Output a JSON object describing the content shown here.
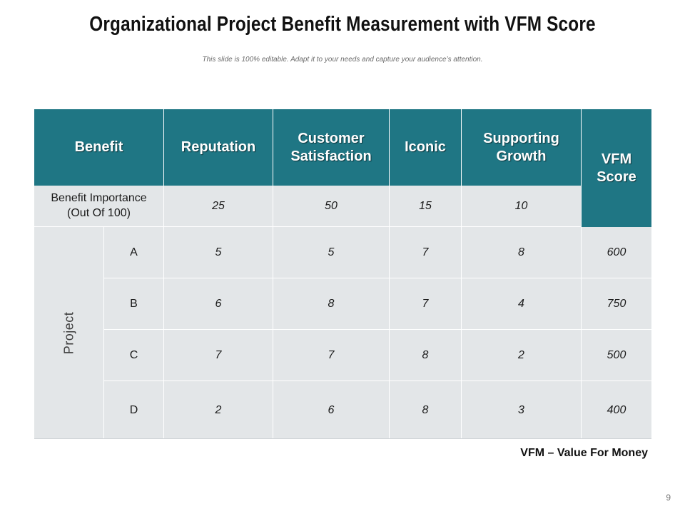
{
  "slide": {
    "title": "Organizational Project Benefit Measurement with VFM Score",
    "subtitle": "This slide is 100% editable. Adapt it to your needs and capture your audience’s attention.",
    "footnote": "VFM – Value For Money",
    "page_number": "9"
  },
  "table": {
    "headers": {
      "benefit": "Benefit",
      "reputation": "Reputation",
      "customer_satisfaction_1": "Customer",
      "customer_satisfaction_2": "Satisfaction",
      "iconic": "Iconic",
      "supporting_growth_1": "Supporting",
      "supporting_growth_2": "Growth",
      "vfm_score_1": "VFM",
      "vfm_score_2": "Score"
    },
    "importance": {
      "label_1": "Benefit Importance",
      "label_2": "(Out Of 100)",
      "values": [
        "25",
        "50",
        "15",
        "10"
      ]
    },
    "project_label": "Project",
    "rows": [
      {
        "name": "A",
        "values": [
          "5",
          "5",
          "7",
          "8"
        ],
        "vfm": "600"
      },
      {
        "name": "B",
        "values": [
          "6",
          "8",
          "7",
          "4"
        ],
        "vfm": "750"
      },
      {
        "name": "C",
        "values": [
          "7",
          "7",
          "8",
          "2"
        ],
        "vfm": "500"
      },
      {
        "name": "D",
        "values": [
          "2",
          "6",
          "8",
          "3"
        ],
        "vfm": "400"
      }
    ]
  },
  "colors": {
    "header_bg": "#1f7684",
    "cell_bg": "#e3e6e8"
  }
}
